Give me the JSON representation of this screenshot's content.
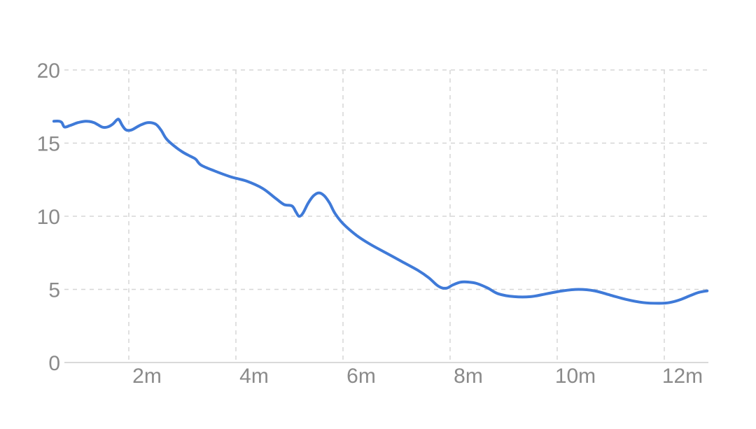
{
  "chart_data": {
    "type": "line",
    "title": "",
    "xlabel": "",
    "ylabel": "",
    "xlim": [
      0.6,
      12.8
    ],
    "ylim": [
      0,
      20
    ],
    "grid": true,
    "y_ticks": [
      {
        "value": 0,
        "label": "0"
      },
      {
        "value": 5,
        "label": "5"
      },
      {
        "value": 10,
        "label": "10"
      },
      {
        "value": 15,
        "label": "15"
      },
      {
        "value": 20,
        "label": "20"
      }
    ],
    "x_ticks": [
      {
        "value": 2,
        "label": "2m"
      },
      {
        "value": 4,
        "label": "4m"
      },
      {
        "value": 6,
        "label": "6m"
      },
      {
        "value": 8,
        "label": "8m"
      },
      {
        "value": 10,
        "label": "10m"
      },
      {
        "value": 12,
        "label": "12m"
      }
    ],
    "colors": {
      "line": "#3f7ad8",
      "grid": "#d6d6d6",
      "axis": "#d9d9d9",
      "tick_text": "#8a8a8a"
    },
    "series": [
      {
        "points": [
          [
            0.6,
            16.5
          ],
          [
            0.7,
            16.5
          ],
          [
            0.75,
            16.4
          ],
          [
            0.8,
            16.1
          ],
          [
            0.9,
            16.2
          ],
          [
            1.05,
            16.4
          ],
          [
            1.2,
            16.5
          ],
          [
            1.35,
            16.4
          ],
          [
            1.5,
            16.1
          ],
          [
            1.6,
            16.1
          ],
          [
            1.7,
            16.3
          ],
          [
            1.78,
            16.6
          ],
          [
            1.82,
            16.6
          ],
          [
            1.88,
            16.2
          ],
          [
            1.95,
            15.9
          ],
          [
            2.05,
            15.9
          ],
          [
            2.2,
            16.2
          ],
          [
            2.35,
            16.4
          ],
          [
            2.5,
            16.3
          ],
          [
            2.6,
            15.9
          ],
          [
            2.7,
            15.3
          ],
          [
            2.85,
            14.8
          ],
          [
            3.0,
            14.4
          ],
          [
            3.15,
            14.1
          ],
          [
            3.25,
            13.9
          ],
          [
            3.35,
            13.5
          ],
          [
            3.6,
            13.1
          ],
          [
            3.9,
            12.7
          ],
          [
            4.2,
            12.4
          ],
          [
            4.5,
            11.9
          ],
          [
            4.75,
            11.2
          ],
          [
            4.9,
            10.8
          ],
          [
            5.05,
            10.7
          ],
          [
            5.12,
            10.3
          ],
          [
            5.18,
            10.0
          ],
          [
            5.25,
            10.2
          ],
          [
            5.35,
            10.9
          ],
          [
            5.45,
            11.4
          ],
          [
            5.55,
            11.6
          ],
          [
            5.65,
            11.4
          ],
          [
            5.75,
            10.9
          ],
          [
            5.85,
            10.2
          ],
          [
            6.0,
            9.5
          ],
          [
            6.25,
            8.7
          ],
          [
            6.5,
            8.1
          ],
          [
            6.8,
            7.5
          ],
          [
            7.1,
            6.9
          ],
          [
            7.4,
            6.3
          ],
          [
            7.6,
            5.8
          ],
          [
            7.75,
            5.3
          ],
          [
            7.85,
            5.1
          ],
          [
            7.95,
            5.1
          ],
          [
            8.05,
            5.3
          ],
          [
            8.2,
            5.5
          ],
          [
            8.35,
            5.5
          ],
          [
            8.5,
            5.4
          ],
          [
            8.7,
            5.1
          ],
          [
            8.9,
            4.7
          ],
          [
            9.2,
            4.5
          ],
          [
            9.5,
            4.5
          ],
          [
            9.8,
            4.7
          ],
          [
            10.1,
            4.9
          ],
          [
            10.4,
            5.0
          ],
          [
            10.7,
            4.9
          ],
          [
            11.0,
            4.6
          ],
          [
            11.3,
            4.3
          ],
          [
            11.6,
            4.1
          ],
          [
            11.9,
            4.05
          ],
          [
            12.1,
            4.1
          ],
          [
            12.3,
            4.3
          ],
          [
            12.5,
            4.6
          ],
          [
            12.65,
            4.8
          ],
          [
            12.8,
            4.9
          ]
        ]
      }
    ]
  }
}
